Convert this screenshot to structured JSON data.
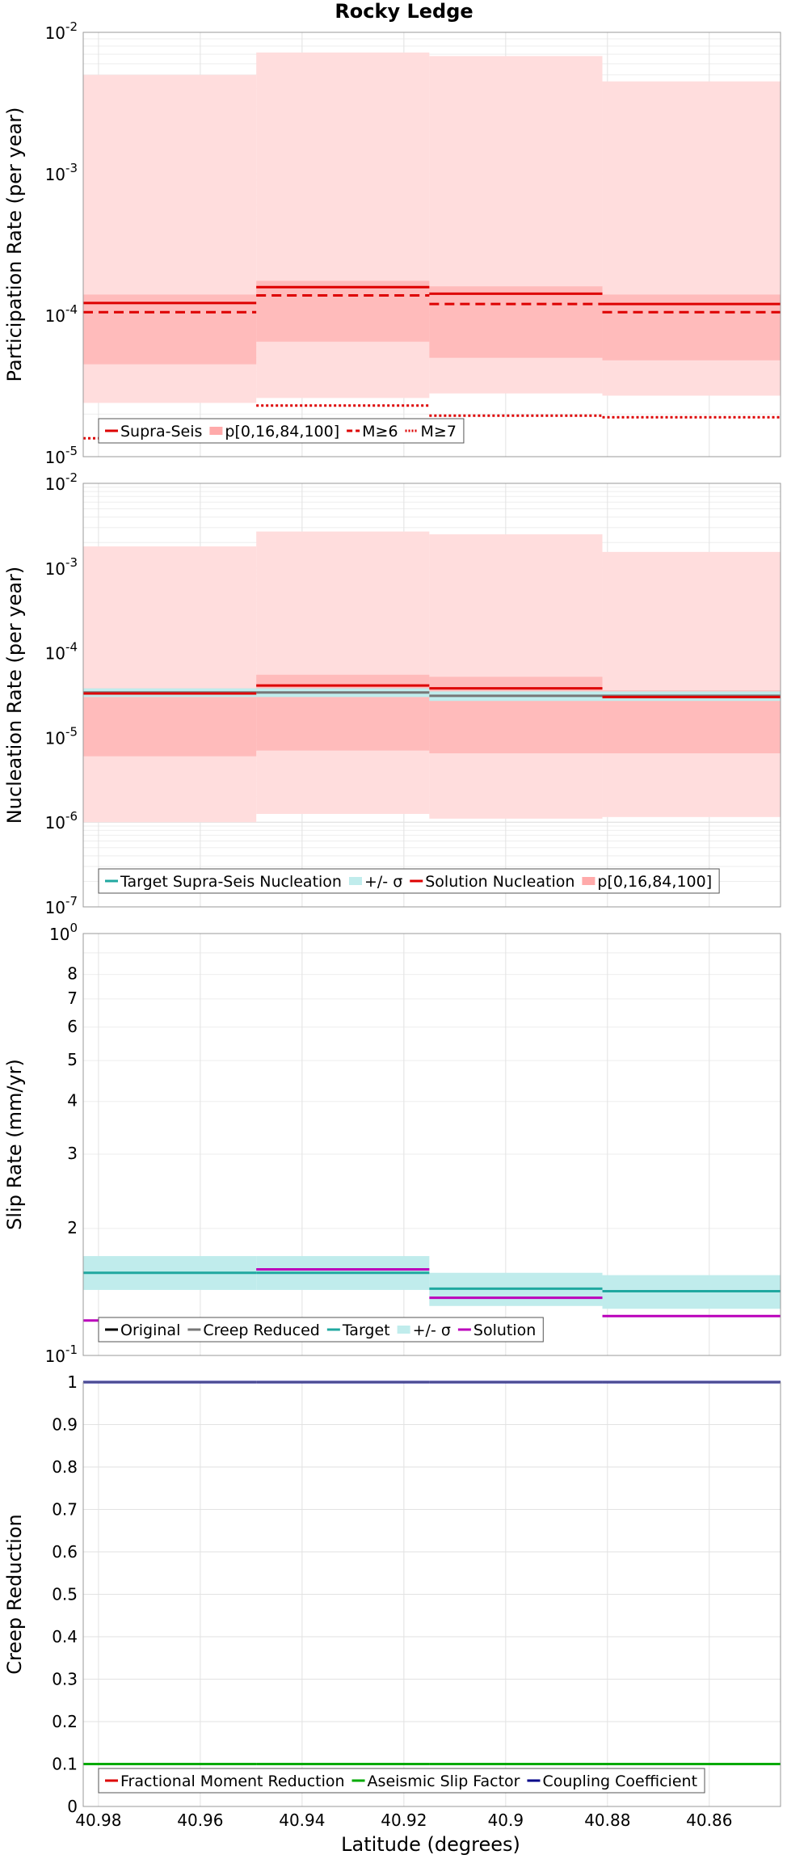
{
  "title": "Rocky Ledge",
  "xlabel": "Latitude (degrees)",
  "colors": {
    "red": "#dd0000",
    "band_light": "#ffdddd",
    "band_dark": "#ffbbbb",
    "target": "#20a8a0",
    "target_band": "#c0ecec",
    "solution": "#bb00bb",
    "gray": "#777777",
    "black": "#000000",
    "green": "#00aa00",
    "navy": "#000088",
    "pink": "#ffaaaa"
  },
  "chart_data": {
    "type": "line",
    "x_axis": {
      "label": "Latitude (degrees)",
      "range": [
        40.983,
        40.846
      ],
      "ticks": [
        "40.98",
        "40.96",
        "40.94",
        "40.92",
        "40.9",
        "40.88",
        "40.86"
      ],
      "tick_values": [
        40.98,
        40.96,
        40.94,
        40.92,
        40.9,
        40.88,
        40.86
      ]
    },
    "section_bounds": [
      40.983,
      40.949,
      40.915,
      40.881,
      40.846
    ],
    "panels": [
      {
        "id": "participation",
        "ylabel": "Participation Rate (per year)",
        "yscale": "log",
        "ylim": [
          1e-05,
          0.01
        ],
        "ytick_base": "10",
        "ytick_exponents": [
          "-5",
          "-4",
          "-3",
          "-2"
        ],
        "bands": [
          {
            "name": "p0-100",
            "color": "band_light",
            "lo": [
              2.4e-05,
              2.6e-05,
              2.8e-05,
              2.7e-05
            ],
            "hi": [
              0.005,
              0.0072,
              0.0068,
              0.0045
            ]
          },
          {
            "name": "p16-84",
            "color": "band_dark",
            "lo": [
              4.5e-05,
              6.5e-05,
              5e-05,
              4.8e-05
            ],
            "hi": [
              0.00014,
              0.000175,
              0.00016,
              0.00014
            ]
          }
        ],
        "series": [
          {
            "name": "Supra-Seis",
            "style": "solid",
            "color": "red",
            "values": [
              0.000122,
              0.000158,
              0.000142,
              0.00012
            ]
          },
          {
            "name": "M≥6",
            "style": "dashed",
            "color": "red",
            "values": [
              0.000105,
              0.000138,
              0.00012,
              0.000105
            ]
          },
          {
            "name": "M≥7",
            "style": "dotted",
            "color": "red",
            "values": [
              1.35e-05,
              2.3e-05,
              1.95e-05,
              1.9e-05
            ]
          }
        ],
        "legend": [
          "Supra-Seis",
          "p[0,16,84,100]",
          "M≥6",
          "M≥7"
        ]
      },
      {
        "id": "nucleation",
        "ylabel": "Nucleation Rate (per year)",
        "yscale": "log",
        "ylim": [
          1e-07,
          0.01
        ],
        "ytick_base": "10",
        "ytick_exponents": [
          "-7",
          "-6",
          "-5",
          "-4",
          "-3",
          "-2"
        ],
        "bands": [
          {
            "name": "p0-100",
            "color": "band_light",
            "lo": [
              1e-06,
              1.25e-06,
              1.1e-06,
              1.15e-06
            ],
            "hi": [
              0.0018,
              0.0027,
              0.0025,
              0.00155
            ]
          },
          {
            "name": "p16-84",
            "color": "band_dark",
            "lo": [
              6e-06,
              7e-06,
              6.5e-06,
              6.5e-06
            ],
            "hi": [
              3.8e-05,
              5.5e-05,
              5.2e-05,
              3.6e-05
            ]
          },
          {
            "name": "sigma",
            "color": "target_band",
            "lo": [
              3e-05,
              3e-05,
              2.7e-05,
              2.7e-05
            ],
            "hi": [
              3.8e-05,
              3.8e-05,
              3.5e-05,
              3.5e-05
            ]
          }
        ],
        "series": [
          {
            "name": "Target Supra-Seis Nucleation",
            "style": "solid",
            "color": "gray",
            "values": [
              3.4e-05,
              3.4e-05,
              3.1e-05,
              3.1e-05
            ]
          },
          {
            "name": "Solution Nucleation",
            "style": "solid",
            "color": "red",
            "values": [
              3.3e-05,
              4.1e-05,
              3.8e-05,
              3e-05
            ]
          }
        ],
        "legend": [
          "Target Supra-Seis Nucleation",
          "+/- σ",
          "Solution Nucleation",
          "p[0,16,84,100]"
        ]
      },
      {
        "id": "slip",
        "ylabel": "Slip Rate (mm/yr)",
        "yscale": "log",
        "ylim": [
          0.1,
          1.0
        ],
        "ytick_top": [
          "10",
          "0"
        ],
        "ytick_bottom": [
          "10",
          "-1"
        ],
        "minor_ticks": [
          "2",
          "3",
          "4",
          "5",
          "6",
          "7",
          "8"
        ],
        "minor_values": [
          0.2,
          0.3,
          0.4,
          0.5,
          0.6,
          0.7,
          0.8
        ],
        "bands": [
          {
            "name": "sigma",
            "color": "target_band",
            "lo": [
              0.143,
              0.143,
              0.131,
              0.129
            ],
            "hi": [
              0.172,
              0.172,
              0.157,
              0.155
            ]
          }
        ],
        "series": [
          {
            "name": "Target",
            "style": "solid",
            "color": "target",
            "values": [
              0.157,
              0.157,
              0.144,
              0.142
            ]
          },
          {
            "name": "Solution",
            "style": "solid",
            "color": "solution",
            "values": [
              0.121,
              0.16,
              0.137,
              0.124
            ]
          }
        ],
        "legend": [
          "Original",
          "Creep Reduced",
          "Target",
          "+/- σ",
          "Solution"
        ]
      },
      {
        "id": "creep",
        "ylabel": "Creep Reduction",
        "yscale": "linear",
        "ylim": [
          0,
          1
        ],
        "yticks": [
          "0",
          "0.1",
          "0.2",
          "0.3",
          "0.4",
          "0.5",
          "0.6",
          "0.7",
          "0.8",
          "0.9",
          "1"
        ],
        "ytick_values": [
          0,
          0.1,
          0.2,
          0.3,
          0.4,
          0.5,
          0.6,
          0.7,
          0.8,
          0.9,
          1.0
        ],
        "series": [
          {
            "name": "Aseismic Slip Factor",
            "style": "solid",
            "color": "green",
            "values": [
              0.1,
              0.1,
              0.1,
              0.1
            ]
          },
          {
            "name": "Coupling Coefficient",
            "style": "solid",
            "color": "navy",
            "values": [
              1.0,
              1.0,
              1.0,
              1.0
            ]
          }
        ],
        "legend": [
          "Fractional Moment Reduction",
          "Aseismic Slip Factor",
          "Coupling Coefficient"
        ]
      }
    ]
  }
}
